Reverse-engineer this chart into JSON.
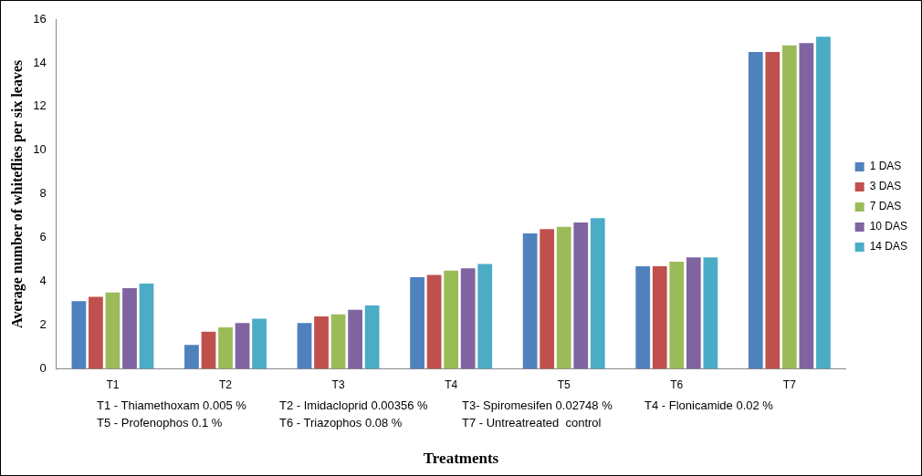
{
  "chart_data": {
    "type": "bar",
    "ylabel": "Average number of whiteflies per six leaves",
    "xlabel": "Treatments",
    "categories": [
      "T1",
      "T2",
      "T3",
      "T4",
      "T5",
      "T6",
      "T7"
    ],
    "series": [
      {
        "name": "1 DAS",
        "color": "#4f81bd",
        "values": [
          3.1,
          1.1,
          2.1,
          4.2,
          6.2,
          4.7,
          14.5
        ]
      },
      {
        "name": "3 DAS",
        "color": "#c0504d",
        "values": [
          3.3,
          1.7,
          2.4,
          4.3,
          6.4,
          4.7,
          14.5
        ]
      },
      {
        "name": "7 DAS",
        "color": "#9bbb59",
        "values": [
          3.5,
          1.9,
          2.5,
          4.5,
          6.5,
          4.9,
          14.8
        ]
      },
      {
        "name": "10 DAS",
        "color": "#8064a2",
        "values": [
          3.7,
          2.1,
          2.7,
          4.6,
          6.7,
          5.1,
          14.9
        ]
      },
      {
        "name": "14 DAS",
        "color": "#4bacc6",
        "values": [
          3.9,
          2.3,
          2.9,
          4.8,
          6.9,
          5.1,
          15.2
        ]
      }
    ],
    "ylim": [
      0,
      16
    ],
    "yticks": [
      0,
      2,
      4,
      6,
      8,
      10,
      12,
      14,
      16
    ],
    "grid": false,
    "legend": "right",
    "annotations": [
      "T1 - Thiamethoxam 0.005 %",
      "T2 - Imidacloprid 0.00356 %",
      "T3- Spiromesifen 0.02748 %",
      "T4 - Flonicamide 0.02 %",
      "T5 - Profenophos 0.1 %",
      "T6 - Triazophos 0.08 %",
      "T7 - Untreatreated  control"
    ]
  }
}
